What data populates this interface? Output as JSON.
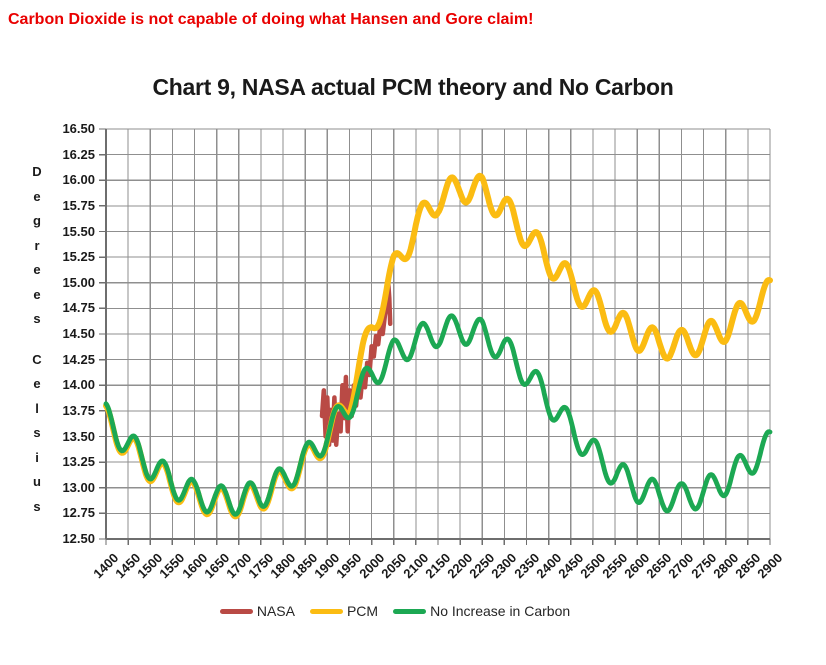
{
  "header": {
    "headline": "Carbon Dioxide is not capable of doing what Hansen and Gore claim!"
  },
  "colors": {
    "headline": "#E90000",
    "title": "#1A1A1A",
    "gridline": "#8F8F8F",
    "axis": "#6E6E6E",
    "tick_text": "#1A1A1A",
    "background": "#FFFFFF"
  },
  "chart_data": {
    "type": "line",
    "title": "Chart 9, NASA actual PCM theory and No Carbon",
    "grid": true,
    "legend_position": "bottom",
    "y_axis": {
      "title": "Degrees Celsius",
      "min": 12.5,
      "max": 16.5,
      "step": 0.25,
      "tick_labels": [
        "16.50",
        "16.25",
        "16.00",
        "15.75",
        "15.50",
        "15.25",
        "15.00",
        "14.75",
        "14.50",
        "14.25",
        "14.00",
        "13.75",
        "13.50",
        "13.25",
        "13.00",
        "12.75",
        "12.50"
      ]
    },
    "x_axis": {
      "min": 1400,
      "max": 2900,
      "step": 50,
      "tick_labels": [
        "1400",
        "1450",
        "1500",
        "1550",
        "1600",
        "1650",
        "1700",
        "1750",
        "1800",
        "1850",
        "1900",
        "1950",
        "2000",
        "2050",
        "2100",
        "2150",
        "2200",
        "2250",
        "2300",
        "2350",
        "2400",
        "2450",
        "2500",
        "2550",
        "2600",
        "2650",
        "2700",
        "2750",
        "2800",
        "2850",
        "2900"
      ]
    },
    "oscillation": {
      "amplitude": 0.14,
      "period_years": 65,
      "peak_year": 1400
    },
    "series": [
      {
        "name": "NASA",
        "color": "#B94A45",
        "width": 4.5,
        "points": [
          [
            1888,
            13.7
          ],
          [
            1892,
            13.95
          ],
          [
            1896,
            13.5
          ],
          [
            1900,
            13.88
          ],
          [
            1904,
            13.42
          ],
          [
            1908,
            13.76
          ],
          [
            1912,
            13.46
          ],
          [
            1916,
            13.88
          ],
          [
            1920,
            13.42
          ],
          [
            1925,
            13.72
          ],
          [
            1930,
            13.55
          ],
          [
            1934,
            14.0
          ],
          [
            1938,
            13.68
          ],
          [
            1942,
            14.08
          ],
          [
            1946,
            13.55
          ],
          [
            1950,
            13.95
          ],
          [
            1955,
            13.7
          ],
          [
            1960,
            14.0
          ],
          [
            1965,
            13.8
          ],
          [
            1970,
            14.02
          ],
          [
            1975,
            13.88
          ],
          [
            1980,
            14.1
          ],
          [
            1985,
            13.98
          ],
          [
            1990,
            14.22
          ],
          [
            1995,
            14.1
          ],
          [
            2000,
            14.38
          ],
          [
            2005,
            14.28
          ],
          [
            2010,
            14.48
          ],
          [
            2015,
            14.4
          ],
          [
            2020,
            14.6
          ],
          [
            2025,
            14.5
          ],
          [
            2030,
            14.68
          ],
          [
            2034,
            14.78
          ],
          [
            2037,
            15.03
          ],
          [
            2040,
            14.85
          ],
          [
            2042,
            14.6
          ]
        ]
      },
      {
        "name": "PCM",
        "color": "#FBBC12",
        "width": 6,
        "osc": true,
        "trend": [
          [
            1400,
            13.66
          ],
          [
            1450,
            13.4
          ],
          [
            1500,
            13.2
          ],
          [
            1550,
            13.03
          ],
          [
            1600,
            12.91
          ],
          [
            1650,
            12.86
          ],
          [
            1700,
            12.86
          ],
          [
            1750,
            12.92
          ],
          [
            1800,
            13.05
          ],
          [
            1850,
            13.25
          ],
          [
            1900,
            13.5
          ],
          [
            1950,
            13.86
          ],
          [
            2000,
            14.55
          ],
          [
            2050,
            15.12
          ],
          [
            2100,
            15.55
          ],
          [
            2150,
            15.82
          ],
          [
            2200,
            15.93
          ],
          [
            2250,
            15.9
          ],
          [
            2300,
            15.72
          ],
          [
            2350,
            15.47
          ],
          [
            2400,
            15.22
          ],
          [
            2450,
            15.0
          ],
          [
            2500,
            14.8
          ],
          [
            2550,
            14.62
          ],
          [
            2600,
            14.48
          ],
          [
            2650,
            14.4
          ],
          [
            2700,
            14.4
          ],
          [
            2750,
            14.45
          ],
          [
            2800,
            14.57
          ],
          [
            2850,
            14.72
          ],
          [
            2900,
            14.9
          ]
        ]
      },
      {
        "name": "No Increase in Carbon",
        "color": "#1CA853",
        "width": 4.8,
        "osc": true,
        "trend": [
          [
            1400,
            13.68
          ],
          [
            1450,
            13.42
          ],
          [
            1500,
            13.22
          ],
          [
            1550,
            13.05
          ],
          [
            1600,
            12.93
          ],
          [
            1650,
            12.88
          ],
          [
            1700,
            12.88
          ],
          [
            1750,
            12.94
          ],
          [
            1800,
            13.07
          ],
          [
            1850,
            13.27
          ],
          [
            1900,
            13.52
          ],
          [
            1950,
            13.82
          ],
          [
            2000,
            14.1
          ],
          [
            2050,
            14.3
          ],
          [
            2100,
            14.44
          ],
          [
            2150,
            14.52
          ],
          [
            2200,
            14.55
          ],
          [
            2250,
            14.5
          ],
          [
            2300,
            14.35
          ],
          [
            2350,
            14.12
          ],
          [
            2400,
            13.85
          ],
          [
            2450,
            13.58
          ],
          [
            2500,
            13.34
          ],
          [
            2550,
            13.14
          ],
          [
            2600,
            13.0
          ],
          [
            2650,
            12.92
          ],
          [
            2700,
            12.9
          ],
          [
            2750,
            12.95
          ],
          [
            2800,
            13.07
          ],
          [
            2850,
            13.24
          ],
          [
            2900,
            13.42
          ]
        ]
      }
    ]
  }
}
